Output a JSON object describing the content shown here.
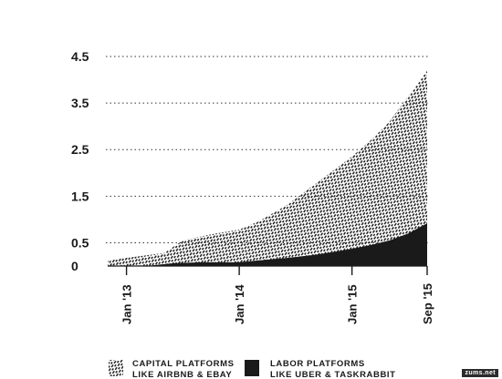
{
  "chart_data": {
    "type": "area",
    "stacked": false,
    "grid": "horizontal dotted",
    "legend_position": "bottom",
    "ylim": [
      0,
      4.5
    ],
    "y_ticks": [
      {
        "value": 0,
        "label": "0"
      },
      {
        "value": 0.5,
        "label": "0.5"
      },
      {
        "value": 1.5,
        "label": "1.5"
      },
      {
        "value": 2.5,
        "label": "2.5"
      },
      {
        "value": 3.5,
        "label": "3.5"
      },
      {
        "value": 4.5,
        "label": "4.5"
      }
    ],
    "x_domain": [
      "2012-11-01",
      "2015-09-01"
    ],
    "x_ticks": [
      {
        "date": "2013-01-01",
        "label": "Jan '13"
      },
      {
        "date": "2014-01-01",
        "label": "Jan '14"
      },
      {
        "date": "2015-01-01",
        "label": "Jan '15"
      },
      {
        "date": "2015-09-01",
        "label": "Sep '15"
      }
    ],
    "series": [
      {
        "name": "CAPITAL PLATFORMS",
        "name_line2": "LIKE AIRBNB & EBAY",
        "color": "#1a1a1a",
        "fill": "diagonal-dash-hatch",
        "x": [
          "2012-11-01",
          "2013-02-01",
          "2013-05-01",
          "2013-07-01",
          "2013-10-01",
          "2014-01-01",
          "2014-03-01",
          "2014-06-01",
          "2014-09-01",
          "2014-11-01",
          "2015-01-01",
          "2015-03-01",
          "2015-05-01",
          "2015-07-01",
          "2015-09-01"
        ],
        "values": [
          0.13,
          0.2,
          0.28,
          0.55,
          0.68,
          0.78,
          0.95,
          1.3,
          1.75,
          2.05,
          2.35,
          2.7,
          3.1,
          3.65,
          4.2
        ]
      },
      {
        "name": "LABOR PLATFORMS",
        "name_line2": "LIKE UBER & TASKRABBIT",
        "color": "#1a1a1a",
        "fill": "solid",
        "x": [
          "2013-03-01",
          "2013-06-01",
          "2013-09-01",
          "2014-01-01",
          "2014-03-01",
          "2014-06-01",
          "2014-09-01",
          "2014-11-01",
          "2015-01-01",
          "2015-03-01",
          "2015-05-01",
          "2015-07-01",
          "2015-09-01"
        ],
        "values": [
          0,
          0.06,
          0.08,
          0.08,
          0.12,
          0.17,
          0.24,
          0.3,
          0.37,
          0.45,
          0.55,
          0.7,
          0.92
        ]
      }
    ]
  },
  "watermark": "zums.net"
}
